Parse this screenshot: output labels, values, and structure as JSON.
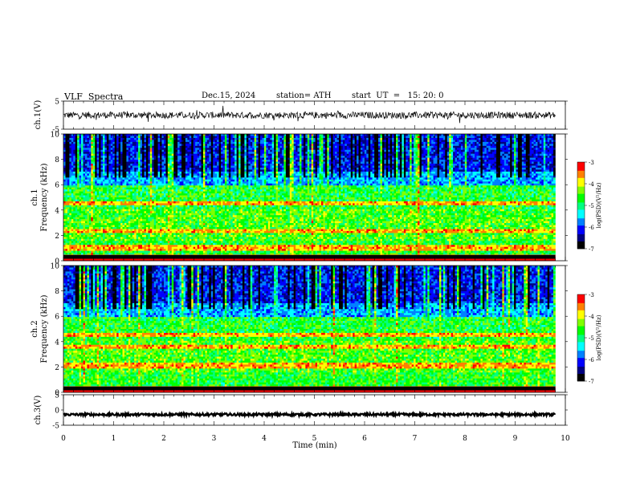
{
  "header": {
    "title": "VLF  Spectra",
    "date": "Dec.15, 2024",
    "station": "station= ATH",
    "start_ut": "start  UT  =   15: 20: 0"
  },
  "colors": {
    "spectrogram_palette": [
      "#000000",
      "#000080",
      "#0000ff",
      "#0080ff",
      "#00ffff",
      "#00ff80",
      "#00ff00",
      "#80ff00",
      "#ffff00",
      "#ff8000",
      "#ff0000",
      "#ffffff"
    ]
  },
  "chart_data": [
    {
      "type": "line",
      "panel": "ch1-waveform",
      "ylabel": "ch.1(V)",
      "ylim": [
        -5,
        5
      ],
      "yticks": [
        "5",
        "-5"
      ],
      "xlim": [
        0,
        10
      ],
      "trace_baseline": 0,
      "trace_noise_amplitude": 1.2,
      "trace_end_min": 9.8
    },
    {
      "type": "heatmap",
      "panel": "ch1-spectrogram",
      "ylabel": "ch.1\nFrequency  (kHz)",
      "ylim": [
        0,
        10
      ],
      "yticks": [
        "0",
        "2",
        "4",
        "6",
        "8",
        "10"
      ],
      "xlim": [
        0,
        10
      ],
      "data_end_min": 9.8,
      "colorbar": {
        "label": "log(PSD)(V²/Hz)",
        "range": [
          -7,
          -3
        ],
        "ticks": [
          "-3",
          "-4",
          "-5",
          "-6",
          "-7"
        ]
      },
      "emission_bands_khz": [
        4.5,
        2.3,
        1.0
      ],
      "quiet_band_khz": [
        6,
        10
      ]
    },
    {
      "type": "heatmap",
      "panel": "ch2-spectrogram",
      "ylabel": "ch.2\nFrequency  (kHz)",
      "ylim": [
        0,
        10
      ],
      "yticks": [
        "0",
        "2",
        "4",
        "6",
        "8",
        "10"
      ],
      "xlim": [
        0,
        10
      ],
      "data_end_min": 9.8,
      "colorbar": {
        "label": "log(PSD)(V²/Hz)",
        "range": [
          -7,
          -3
        ],
        "ticks": [
          "-3",
          "-4",
          "-5",
          "-6",
          "-7"
        ]
      },
      "emission_bands_khz": [
        4.5,
        3.6,
        2.1
      ],
      "quiet_band_khz": [
        6,
        10
      ]
    },
    {
      "type": "line",
      "panel": "ch3-waveform",
      "ylabel": "ch.3(V)",
      "ylim": [
        -5,
        5
      ],
      "yticks": [
        "5",
        "0",
        "-5"
      ],
      "xlim": [
        0,
        10
      ],
      "xlabel": "Time  (min)",
      "xticks": [
        "0",
        "1",
        "2",
        "3",
        "4",
        "5",
        "6",
        "7",
        "8",
        "9",
        "10"
      ],
      "trace_baseline": -1.5,
      "trace_noise_amplitude": 0.4,
      "trace_end_min": 9.8
    }
  ]
}
